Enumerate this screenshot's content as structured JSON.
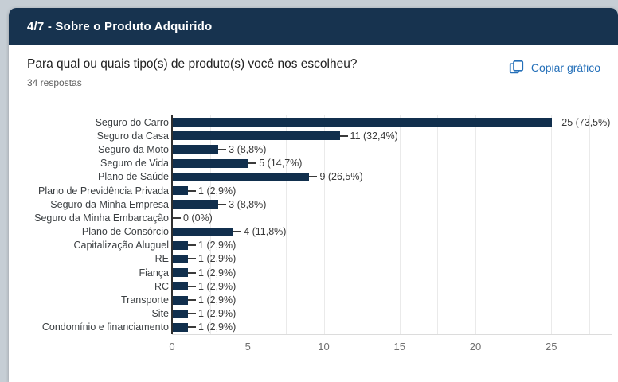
{
  "header": {
    "section_title": "4/7 - Sobre o Produto Adquirido"
  },
  "question": {
    "title": "Para qual ou quais tipo(s) de produto(s) você nos escolheu?",
    "responses": "34 respostas",
    "copy_label": "Copiar gráfico"
  },
  "colors": {
    "page_bg": "#c6ced5",
    "banner": "#17334f",
    "bar": "#112f4d",
    "accent_blue": "#2570b9"
  },
  "chart_data": {
    "type": "bar",
    "orientation": "horizontal",
    "title": "Para qual ou quais tipo(s) de produto(s) você nos escolheu?",
    "categories": [
      "Seguro do Carro",
      "Seguro da Casa",
      "Seguro da Moto",
      "Seguro de Vida",
      "Plano de Saúde",
      "Plano de Previdência Privada",
      "Seguro da Minha Empresa",
      "Seguro da Minha Embarcação",
      "Plano de Consórcio",
      "Capitalização Aluguel",
      "RE",
      "Fiança",
      "RC",
      "Transporte",
      "Site",
      "Condomínio e financiamento"
    ],
    "values": [
      25,
      11,
      3,
      5,
      9,
      1,
      3,
      0,
      4,
      1,
      1,
      1,
      1,
      1,
      1,
      1
    ],
    "annotations": [
      "25 (73,5%)",
      "11 (32,4%)",
      "3 (8,8%)",
      "5 (14,7%)",
      "9 (26,5%)",
      "1 (2,9%)",
      "3 (8,8%)",
      "0 (0%)",
      "4 (11,8%)",
      "1 (2,9%)",
      "1 (2,9%)",
      "1 (2,9%)",
      "1 (2,9%)",
      "1 (2,9%)",
      "1 (2,9%)",
      "1 (2,9%)"
    ],
    "xticks": [
      0,
      5,
      10,
      15,
      20,
      25
    ],
    "xlim": [
      0,
      25
    ],
    "grid_step": 2.5,
    "grid": true,
    "legend": false
  }
}
